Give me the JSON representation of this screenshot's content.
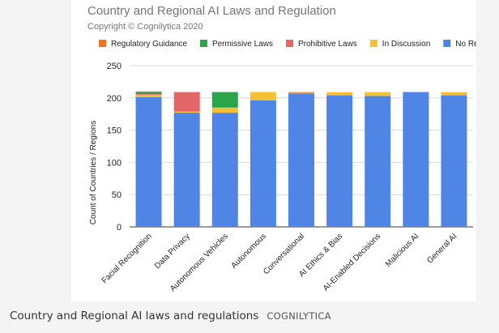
{
  "chart_data": {
    "type": "bar",
    "stacked": true,
    "title": "Country and Regional AI Laws and Regulation",
    "subtitle": "Copyright © Cognilytica 2020",
    "xlabel": "",
    "ylabel": "Count of Countries / Regions",
    "ylim": [
      0,
      250
    ],
    "yticks": [
      0,
      50,
      100,
      150,
      200,
      250
    ],
    "grid": true,
    "legend_position": "top",
    "categories": [
      "Facial Recognition",
      "Data Privacy",
      "Autonomous Vehicles",
      "Autonomous",
      "Conversational",
      "AI Ethics & Bias",
      "AI-Enabled Decisions",
      "Malicious AI",
      "General AI"
    ],
    "series": [
      {
        "name": "No Regulation",
        "color": "#4f86e6",
        "values": [
          201,
          177,
          177,
          196,
          207,
          204,
          203,
          209,
          204
        ]
      },
      {
        "name": "In Discussion",
        "color": "#f5c033",
        "values": [
          4,
          2,
          8,
          13,
          1,
          5,
          6,
          0,
          5
        ]
      },
      {
        "name": "Prohibitive Laws",
        "color": "#e46768",
        "values": [
          1,
          30,
          0,
          0,
          1,
          0,
          0,
          0,
          0
        ]
      },
      {
        "name": "Permissive Laws",
        "color": "#2ca54a",
        "values": [
          3,
          0,
          24,
          0,
          0,
          0,
          0,
          0,
          0
        ]
      },
      {
        "name": "Regulatory Guidance",
        "color": "#ed7128",
        "values": [
          1,
          0,
          0,
          0,
          0,
          0,
          0,
          0,
          0
        ]
      }
    ],
    "legend_order": [
      "Regulatory Guidance",
      "Permissive Laws",
      "Prohibitive Laws",
      "In Discussion",
      "No Regulation"
    ]
  },
  "caption": {
    "text": "Country and Regional AI laws and regulations",
    "credit": "COGNILYTICA"
  }
}
